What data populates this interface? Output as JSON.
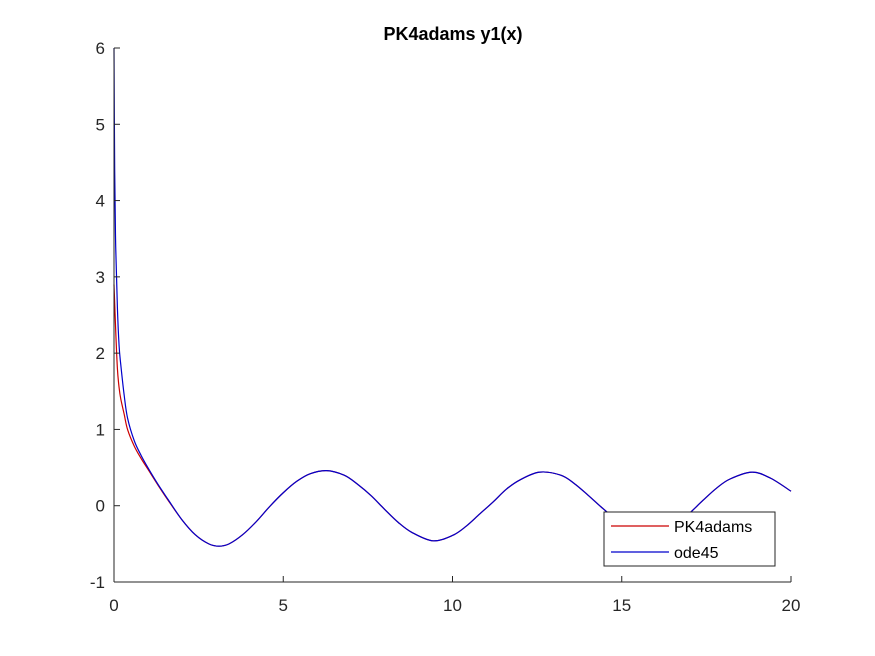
{
  "chart_data": {
    "type": "line",
    "title": "PK4adams y1(x)",
    "xlabel": "",
    "ylabel": "",
    "xlim": [
      0,
      20
    ],
    "ylim": [
      -1,
      6
    ],
    "x_ticks": [
      "0",
      "5",
      "10",
      "15",
      "20"
    ],
    "y_ticks": [
      "-1",
      "0",
      "1",
      "2",
      "3",
      "4",
      "5",
      "6"
    ],
    "grid": false,
    "legend_position": "bottom-right",
    "series": [
      {
        "name": "PK4adams",
        "color": "#cc0000",
        "x": [
          0,
          0.05,
          0.1,
          0.15,
          0.2,
          0.3,
          0.4,
          0.6,
          0.8,
          1.0,
          1.3,
          1.6,
          2.0,
          2.4,
          2.8,
          3.1,
          3.4,
          3.8,
          4.2,
          4.6,
          5.0,
          5.4,
          5.8,
          6.28,
          6.8,
          7.2,
          7.6,
          8.0,
          8.4,
          8.8,
          9.42,
          10.0,
          10.4,
          10.8,
          11.2,
          11.6,
          12.0,
          12.57,
          13.2,
          13.6,
          14.0,
          14.4,
          14.8,
          15.2,
          15.71,
          16.2,
          16.6,
          17.0,
          17.4,
          17.8,
          18.2,
          18.85,
          19.4,
          20.0
        ],
        "y": [
          2.9,
          2.3,
          1.8,
          1.55,
          1.4,
          1.2,
          1.0,
          0.78,
          0.62,
          0.48,
          0.27,
          0.07,
          -0.18,
          -0.38,
          -0.5,
          -0.53,
          -0.5,
          -0.38,
          -0.21,
          -0.01,
          0.17,
          0.32,
          0.42,
          0.46,
          0.4,
          0.28,
          0.13,
          -0.05,
          -0.22,
          -0.35,
          -0.46,
          -0.39,
          -0.27,
          -0.11,
          0.05,
          0.22,
          0.34,
          0.44,
          0.4,
          0.29,
          0.14,
          -0.02,
          -0.17,
          -0.32,
          -0.42,
          -0.38,
          -0.26,
          -0.1,
          0.07,
          0.23,
          0.35,
          0.44,
          0.36,
          0.19
        ]
      },
      {
        "name": "ode45",
        "color": "#0000cc",
        "x": [
          0,
          0.02,
          0.05,
          0.1,
          0.15,
          0.2,
          0.3,
          0.4,
          0.6,
          0.8,
          1.0,
          1.3,
          1.6,
          2.0,
          2.4,
          2.8,
          3.1,
          3.4,
          3.8,
          4.2,
          4.6,
          5.0,
          5.4,
          5.8,
          6.28,
          6.8,
          7.2,
          7.6,
          8.0,
          8.4,
          8.8,
          9.42,
          10.0,
          10.4,
          10.8,
          11.2,
          11.6,
          12.0,
          12.57,
          13.2,
          13.6,
          14.0,
          14.4,
          14.8,
          15.2,
          15.71,
          16.2,
          16.6,
          17.0,
          17.4,
          17.8,
          18.2,
          18.85,
          19.4,
          20.0
        ],
        "y": [
          6.0,
          4.4,
          3.4,
          2.6,
          2.1,
          1.85,
          1.45,
          1.15,
          0.85,
          0.66,
          0.5,
          0.28,
          0.08,
          -0.18,
          -0.38,
          -0.5,
          -0.53,
          -0.5,
          -0.38,
          -0.21,
          -0.01,
          0.17,
          0.32,
          0.42,
          0.46,
          0.4,
          0.28,
          0.13,
          -0.05,
          -0.22,
          -0.35,
          -0.46,
          -0.39,
          -0.27,
          -0.11,
          0.05,
          0.22,
          0.34,
          0.44,
          0.4,
          0.29,
          0.14,
          -0.02,
          -0.17,
          -0.32,
          -0.42,
          -0.38,
          -0.26,
          -0.1,
          0.07,
          0.23,
          0.35,
          0.44,
          0.36,
          0.19
        ]
      }
    ]
  }
}
